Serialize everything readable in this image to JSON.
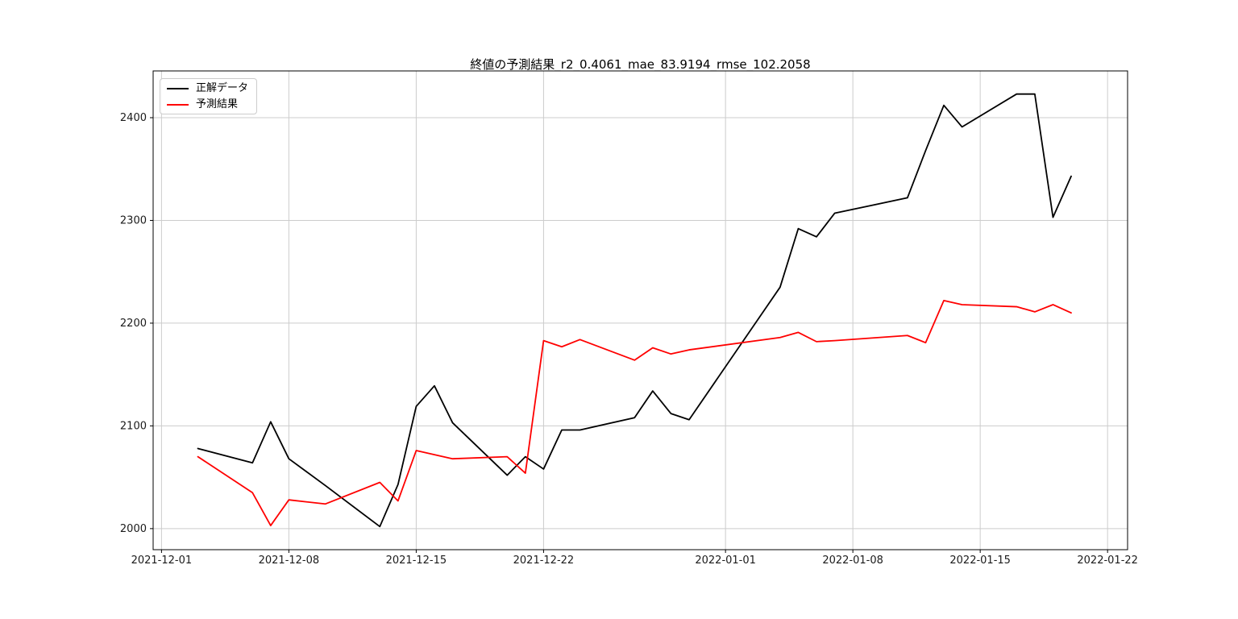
{
  "chart_data": {
    "type": "line",
    "title": "終値の予測結果_r2_0.4061_mae_83.9194_rmse_102.2058",
    "xlabel": "",
    "ylabel": "",
    "grid": true,
    "legend_position": "upper-left",
    "background": "#ffffff",
    "grid_color": "#cccccc",
    "axis_color": "#000000",
    "tick_label_color": "#1a1a1a",
    "xlim_days": [
      -0.46,
      53.1
    ],
    "ylim": [
      1979.5,
      2445.5
    ],
    "x_ticks": [
      {
        "label": "2021-12-01",
        "day": 0
      },
      {
        "label": "2021-12-08",
        "day": 7
      },
      {
        "label": "2021-12-15",
        "day": 14
      },
      {
        "label": "2021-12-22",
        "day": 21
      },
      {
        "label": "2022-01-01",
        "day": 31
      },
      {
        "label": "2022-01-08",
        "day": 38
      },
      {
        "label": "2022-01-15",
        "day": 45
      },
      {
        "label": "2022-01-22",
        "day": 52
      }
    ],
    "y_ticks": [
      {
        "label": "2000",
        "value": 2000
      },
      {
        "label": "2100",
        "value": 2100
      },
      {
        "label": "2200",
        "value": 2200
      },
      {
        "label": "2300",
        "value": 2300
      },
      {
        "label": "2400",
        "value": 2400
      }
    ],
    "x_dates": [
      "2021-12-03",
      "2021-12-06",
      "2021-12-07",
      "2021-12-08",
      "2021-12-09",
      "2021-12-10",
      "2021-12-13",
      "2021-12-14",
      "2021-12-15",
      "2021-12-16",
      "2021-12-17",
      "2021-12-20",
      "2021-12-21",
      "2021-12-22",
      "2021-12-23",
      "2021-12-24",
      "2021-12-27",
      "2021-12-28",
      "2021-12-29",
      "2021-12-30",
      "2022-01-04",
      "2022-01-05",
      "2022-01-06",
      "2022-01-07",
      "2022-01-11",
      "2022-01-12",
      "2022-01-13",
      "2022-01-14",
      "2022-01-17",
      "2022-01-18",
      "2022-01-19",
      "2022-01-20"
    ],
    "x_days": [
      2,
      5,
      6,
      7,
      8,
      9,
      12,
      13,
      14,
      15,
      16,
      19,
      20,
      21,
      22,
      23,
      26,
      27,
      28,
      29,
      34,
      35,
      36,
      37,
      41,
      42,
      43,
      44,
      47,
      48,
      49,
      50
    ],
    "series": [
      {
        "name": "正解データ",
        "color": "#000000",
        "values": [
          2078,
          2064,
          2104,
          2068,
          2055,
          2042,
          2002,
          2043,
          2119,
          2139,
          2103,
          2052,
          2070,
          2058,
          2096,
          2096,
          2108,
          2134,
          2112,
          2106,
          2235,
          2292,
          2284,
          2307,
          2322,
          2368,
          2412,
          2391,
          2423,
          2423,
          2303,
          2343
        ]
      },
      {
        "name": "予測結果",
        "color": "#ff0000",
        "values": [
          2070,
          2035,
          2003,
          2028,
          2026,
          2024,
          2045,
          2027,
          2076,
          2072,
          2068,
          2070,
          2054,
          2183,
          2177,
          2184,
          2164,
          2176,
          2170,
          2174,
          2186,
          2191,
          2182,
          2183,
          2188,
          2181,
          2222,
          2218,
          2216,
          2211,
          2218,
          2210
        ]
      }
    ]
  }
}
